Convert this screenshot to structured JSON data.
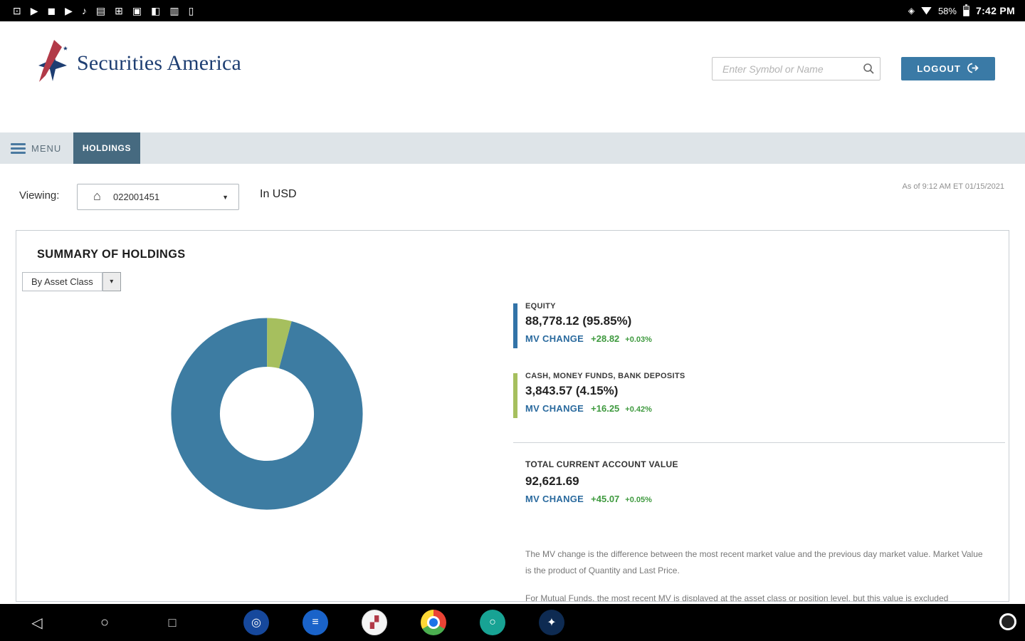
{
  "status_bar": {
    "left_icons": [
      "⊡",
      "▶",
      "◼",
      "▶",
      "♪",
      "▤",
      "⊞",
      "▣",
      "◧",
      "▥",
      "▯"
    ],
    "misc_icon": "◈",
    "battery": "58%",
    "time": "7:42 PM"
  },
  "header": {
    "brand": "Securities America",
    "search": {
      "placeholder": "Enter Symbol or Name"
    },
    "logout_label": "LOGOUT"
  },
  "nav": {
    "menu_label": "MENU",
    "holdings_tab": "HOLDINGS"
  },
  "toolbar": {
    "viewing_label": "Viewing:",
    "account_number": "022001451",
    "currency_label": "In USD",
    "as_of": "As of 9:12 AM ET 01/15/2021"
  },
  "summary": {
    "title": "SUMMARY OF HOLDINGS",
    "filter_label": "By Asset Class",
    "chart_data": {
      "type": "pie",
      "title": "Summary of Holdings by Asset Class",
      "slices": [
        {
          "label": "EQUITY",
          "value": 88778.12,
          "pct": 95.85,
          "color": "#3d7ca2"
        },
        {
          "label": "CASH, MONEY FUNDS, BANK DEPOSITS",
          "value": 3843.57,
          "pct": 4.15,
          "color": "#a6bf5e"
        }
      ],
      "total": 92621.69
    },
    "legend": [
      {
        "label": "EQUITY",
        "amount": "88,778.12 (95.85%)",
        "mv_label": "MV CHANGE",
        "mv_change": "+28.82",
        "mv_pct": "+0.03%",
        "color": "#3273a8"
      },
      {
        "label": "CASH, MONEY FUNDS, BANK DEPOSITS",
        "amount": "3,843.57 (4.15%)",
        "mv_label": "MV CHANGE",
        "mv_change": "+16.25",
        "mv_pct": "+0.42%",
        "color": "#a6bf5e"
      }
    ],
    "total": {
      "label": "TOTAL CURRENT ACCOUNT VALUE",
      "amount": "92,621.69",
      "mv_label": "MV CHANGE",
      "mv_change": "+45.07",
      "mv_pct": "+0.05%"
    },
    "disclaimer_1": "The MV change is the difference between the most recent market value and the previous day market value. Market Value is the product of Quantity and Last Price.",
    "disclaimer_2": "For Mutual Funds, the most recent MV is displayed at the asset class or position level, but this value is excluded"
  },
  "dock": {
    "apps": [
      {
        "name": "dock-app-1",
        "bg": "#16489c",
        "glyph": "◎",
        "fg": "#ffffff"
      },
      {
        "name": "dock-app-2",
        "bg": "#1a63c9",
        "glyph": "≡",
        "fg": "#ffffff"
      },
      {
        "name": "dock-app-3",
        "bg": "#f5f5f5",
        "glyph": "▞",
        "fg": "#b23a48",
        "border": "#d8d8d8"
      },
      {
        "name": "dock-app-chrome",
        "chrome": true
      },
      {
        "name": "dock-app-5",
        "bg": "#18a394",
        "glyph": "○",
        "fg": "#ffffff"
      },
      {
        "name": "dock-app-6",
        "bg": "#0e2b52",
        "glyph": "✦",
        "fg": "#ffffff"
      }
    ]
  }
}
